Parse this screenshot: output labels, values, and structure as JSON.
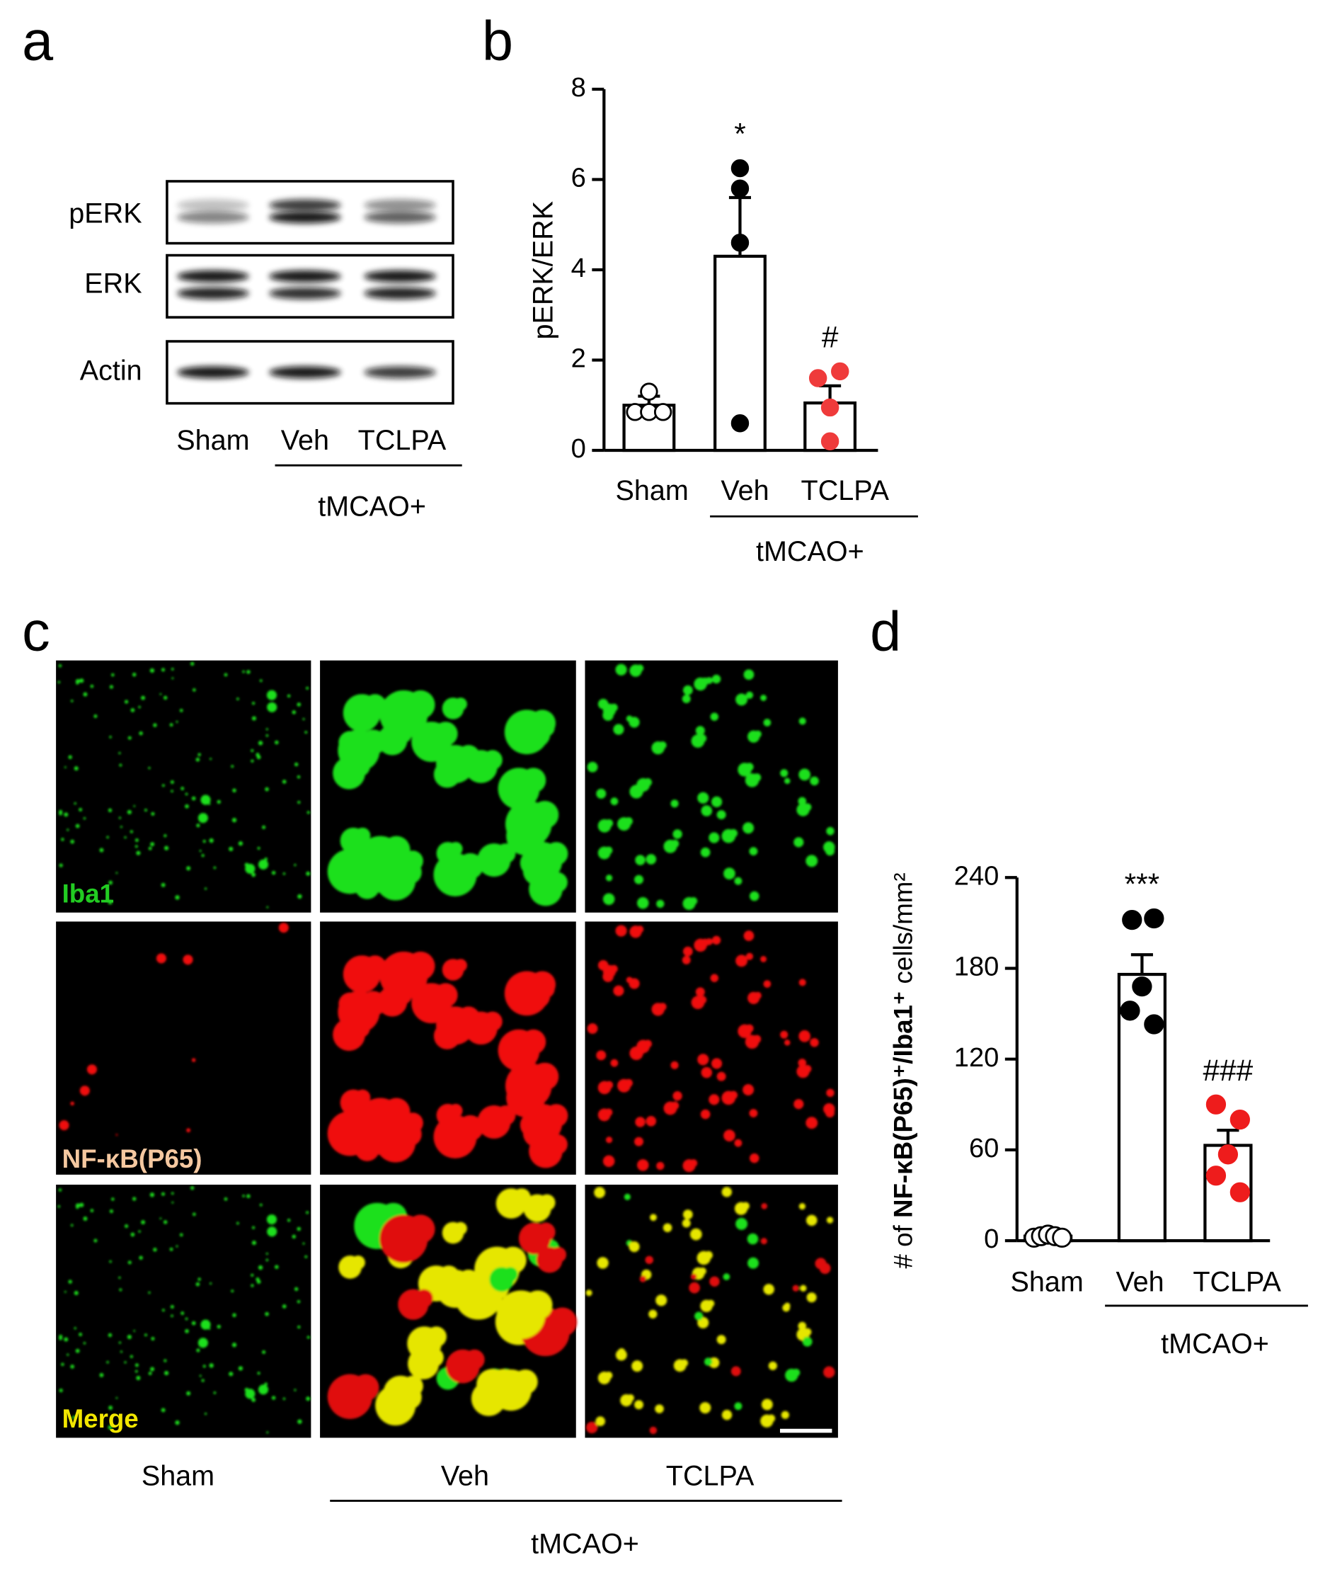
{
  "panel_labels": [
    "a",
    "b",
    "c",
    "d"
  ],
  "blot": {
    "rows": [
      "pERK",
      "ERK",
      "Actin"
    ],
    "lanes": [
      "Sham",
      "Veh",
      "TCLPA"
    ],
    "group": "tMCAO+"
  },
  "micrographs": {
    "channels": [
      "Iba1",
      "NF-κB(P65)",
      "Merge"
    ],
    "columns": [
      "Sham",
      "Veh",
      "TCLPA"
    ],
    "group": "tMCAO+"
  },
  "chart_data": [
    {
      "type": "bar",
      "ylabel": "pERK/ERK",
      "categories": [
        "Sham",
        "Veh",
        "TCLPA"
      ],
      "group_label": "tMCAO+",
      "values": [
        1.0,
        4.3,
        1.05
      ],
      "errors": [
        0.2,
        1.3,
        0.38
      ],
      "points": [
        [
          1.3,
          0.85,
          0.85,
          0.85
        ],
        [
          6.25,
          5.8,
          4.6,
          0.6
        ],
        [
          1.75,
          1.6,
          0.95,
          0.2
        ]
      ],
      "point_colors": [
        "#000000",
        "#000000",
        "#ef3b3b"
      ],
      "point_fill": [
        "open",
        "filled",
        "filled"
      ],
      "annotations": [
        null,
        "*",
        "#"
      ],
      "ylim": [
        0,
        8
      ],
      "yticks": [
        0,
        2,
        4,
        6,
        8
      ]
    },
    {
      "type": "bar",
      "ylabel_parts": [
        "# of ",
        "NF-κB(P65)⁺/Iba1⁺",
        " cells/mm²"
      ],
      "categories": [
        "Sham",
        "Veh",
        "TCLPA"
      ],
      "group_label": "tMCAO+",
      "values": [
        3,
        176,
        63
      ],
      "errors": [
        1,
        13,
        10
      ],
      "points": [
        [
          2,
          3,
          4,
          3,
          2
        ],
        [
          212,
          213,
          168,
          152,
          143
        ],
        [
          90,
          80,
          57,
          43,
          32
        ]
      ],
      "point_colors": [
        "#000000",
        "#000000",
        "#ee1c1c"
      ],
      "point_fill": [
        "open",
        "filled",
        "filled"
      ],
      "annotations": [
        null,
        "***",
        "###"
      ],
      "ylim": [
        0,
        240
      ],
      "yticks": [
        0,
        60,
        120,
        180,
        240
      ]
    }
  ]
}
